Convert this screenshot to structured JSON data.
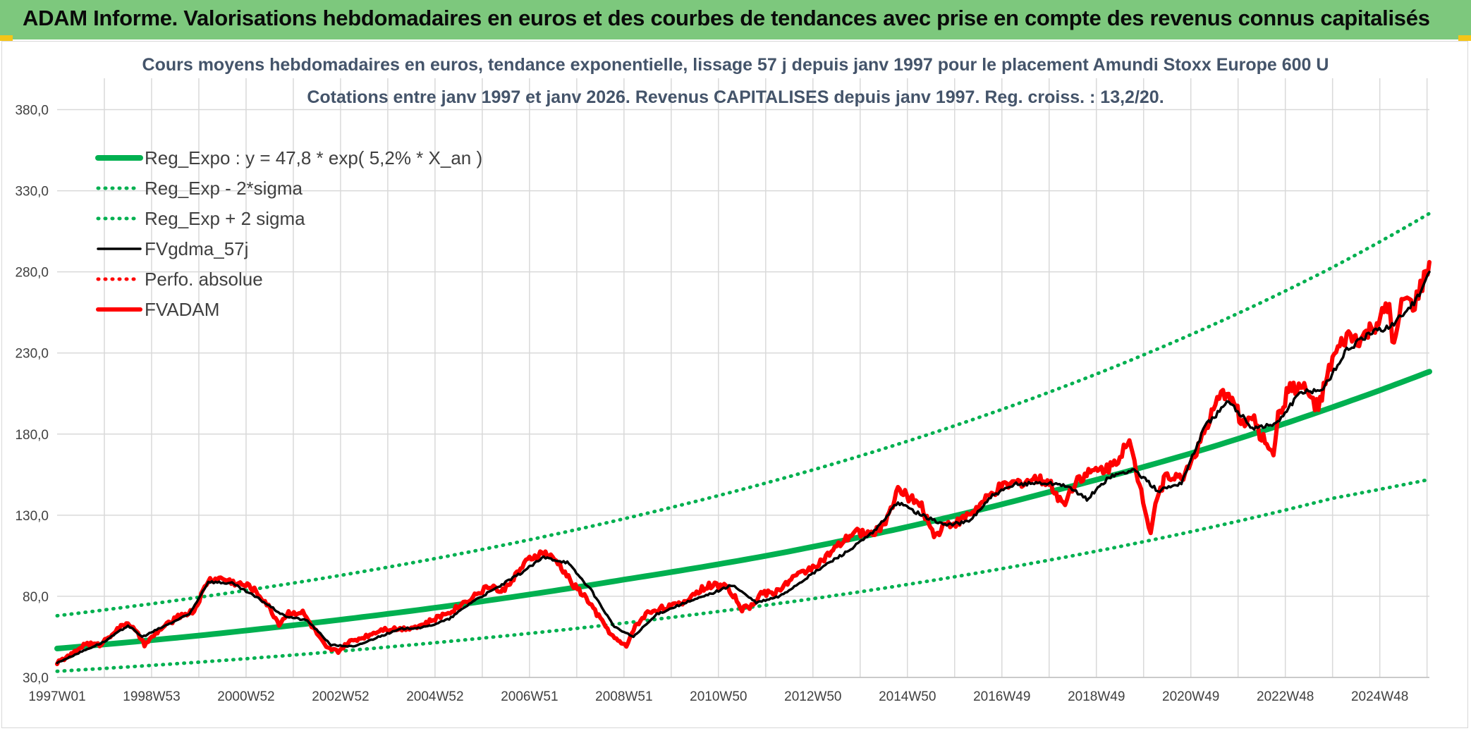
{
  "header": {
    "title": "ADAM Informe. Valorisations hebdomadaires en euros et des courbes de tendances avec prise en compte des revenus connus capitalisés"
  },
  "colors": {
    "header_bg": "#7dc87d",
    "reg_expo": "#00b050",
    "band": "#00b050",
    "fvgdma": "#000000",
    "perfo": "#ff0000",
    "fvadam": "#ff0000",
    "grid": "#d9d9d9",
    "subtitle": "#44546a"
  },
  "chart_data": {
    "type": "line",
    "title": "Cours moyens hebdomadaires en euros, tendance exponentielle, lissage 57 j depuis janv 1997 pour le placement Amundi Stoxx Europe 600 U",
    "subtitle": "Cotations entre janv 1997 et janv 2026. Revenus CAPITALISES depuis janv 1997. Reg. croiss. : 13,2/20.",
    "xlabel": "",
    "ylabel": "",
    "x_range": [
      1997.0,
      2026.05
    ],
    "ylim": [
      30,
      395
    ],
    "y_ticks": [
      "30,0",
      "80,0",
      "130,0",
      "180,0",
      "230,0",
      "280,0",
      "330,0",
      "380,0"
    ],
    "y_tick_values": [
      30,
      80,
      130,
      180,
      230,
      280,
      330,
      380
    ],
    "x_ticks": [
      "1997W01",
      "1998W53",
      "2000W52",
      "2002W52",
      "2004W52",
      "2006W51",
      "2008W51",
      "2010W50",
      "2012W50",
      "2014W50",
      "2016W49",
      "2018W49",
      "2020W49",
      "2022W48",
      "2024W48"
    ],
    "x_tick_values": [
      1997.0,
      1999.0,
      2001.0,
      2003.0,
      2005.0,
      2007.0,
      2009.0,
      2011.0,
      2013.0,
      2015.0,
      2017.0,
      2019.0,
      2021.0,
      2023.0,
      2025.0
    ],
    "grid": true,
    "legend_position": "top-left",
    "series": [
      {
        "name": "Reg_Expo : y = 47,8 * exp( 5,2% *  X_an )",
        "style": "solid-thick",
        "color": "#00b050",
        "x": [
          1997,
          2000,
          2003,
          2006,
          2009,
          2012,
          2015,
          2018,
          2021,
          2024,
          2026.05
        ],
        "values": [
          47.8,
          55.8,
          65.6,
          76.9,
          90.3,
          104.9,
          122.8,
          144.3,
          168.1,
          196.6,
          218.5
        ]
      },
      {
        "name": "Reg_Exp - 2*sigma",
        "style": "dotted",
        "color": "#00b050",
        "x": [
          1997,
          2000,
          2003,
          2006,
          2009,
          2012,
          2015,
          2018,
          2021,
          2024,
          2026.05
        ],
        "values": [
          33.8,
          39.4,
          46.2,
          54.2,
          63.5,
          74.5,
          87.3,
          102.3,
          119.8,
          140.4,
          152.0
        ]
      },
      {
        "name": "Reg_Exp + 2 sigma",
        "style": "dotted",
        "color": "#00b050",
        "x": [
          1997,
          2000,
          2003,
          2006,
          2009,
          2012,
          2015,
          2018,
          2021,
          2024,
          2026.05
        ],
        "values": [
          68.0,
          79.4,
          92.9,
          108.9,
          127.8,
          149.8,
          175.6,
          205.8,
          241.3,
          282.8,
          316.0
        ]
      },
      {
        "name": "FVgdma_57j",
        "style": "solid",
        "color": "#000000",
        "x": [
          1997.0,
          1997.6,
          1998.0,
          1998.5,
          1998.8,
          1999.3,
          1999.8,
          2000.2,
          2000.7,
          2001.3,
          2001.8,
          2002.3,
          2002.8,
          2003.3,
          2003.8,
          2004.3,
          2004.8,
          2005.3,
          2005.8,
          2006.3,
          2006.8,
          2007.3,
          2007.8,
          2008.3,
          2008.8,
          2009.2,
          2009.7,
          2010.2,
          2010.7,
          2011.3,
          2011.8,
          2012.3,
          2012.8,
          2013.3,
          2013.8,
          2014.3,
          2014.8,
          2015.3,
          2015.8,
          2016.3,
          2016.8,
          2017.3,
          2017.8,
          2018.3,
          2018.8,
          2019.3,
          2019.8,
          2020.3,
          2020.8,
          2021.3,
          2021.8,
          2022.3,
          2022.8,
          2023.3,
          2023.8,
          2024.3,
          2024.8,
          2025.3,
          2025.8,
          2026.05
        ],
        "values": [
          39,
          47,
          52,
          62,
          55,
          62,
          69,
          89,
          88,
          78,
          68,
          65,
          50,
          49,
          55,
          60,
          61,
          66,
          77,
          85,
          94,
          104,
          101,
          84,
          61,
          55,
          69,
          75,
          80,
          87,
          76,
          80,
          90,
          100,
          109,
          120,
          138,
          130,
          124,
          126,
          142,
          149,
          150,
          149,
          140,
          154,
          158,
          145,
          150,
          185,
          200,
          184,
          186,
          205,
          208,
          232,
          242,
          248,
          264,
          280
        ]
      },
      {
        "name": "Perfo. absolue",
        "style": "dotted",
        "color": "#ff0000",
        "x": [],
        "values": []
      },
      {
        "name": "FVADAM",
        "style": "solid-thick",
        "color": "#ff0000",
        "x": [
          1997.0,
          1997.3,
          1997.6,
          1997.9,
          1998.2,
          1998.5,
          1998.75,
          1998.85,
          1999.2,
          1999.6,
          1999.9,
          2000.2,
          2000.5,
          2000.8,
          2001.1,
          2001.4,
          2001.7,
          2001.9,
          2002.2,
          2002.5,
          2002.7,
          2002.95,
          2003.2,
          2003.5,
          2003.9,
          2004.3,
          2004.7,
          2005.0,
          2005.4,
          2005.8,
          2006.2,
          2006.4,
          2006.7,
          2007.0,
          2007.3,
          2007.6,
          2007.9,
          2008.2,
          2008.5,
          2008.8,
          2009.05,
          2009.2,
          2009.5,
          2009.8,
          2010.2,
          2010.5,
          2010.8,
          2011.2,
          2011.5,
          2011.7,
          2011.9,
          2012.2,
          2012.5,
          2012.8,
          2013.2,
          2013.5,
          2013.9,
          2014.2,
          2014.5,
          2014.8,
          2015.1,
          2015.3,
          2015.6,
          2015.75,
          2016.1,
          2016.5,
          2016.9,
          2017.3,
          2017.7,
          2018.0,
          2018.3,
          2018.6,
          2018.95,
          2019.3,
          2019.7,
          2019.95,
          2020.15,
          2020.25,
          2020.5,
          2020.8,
          2021.2,
          2021.6,
          2021.8,
          2022.1,
          2022.3,
          2022.5,
          2022.75,
          2022.85,
          2023.1,
          2023.4,
          2023.7,
          2024.0,
          2024.3,
          2024.6,
          2024.9,
          2025.2,
          2025.3,
          2025.5,
          2025.7,
          2025.9,
          2026.05
        ],
        "values": [
          39,
          44,
          51,
          50,
          58,
          64,
          55,
          50,
          60,
          68,
          71,
          90,
          91,
          88,
          86,
          77,
          63,
          70,
          70,
          57,
          48,
          46,
          52,
          55,
          60,
          60,
          62,
          66,
          72,
          80,
          87,
          82,
          93,
          103,
          107,
          101,
          88,
          79,
          66,
          54,
          49,
          60,
          70,
          73,
          75,
          82,
          87,
          86,
          72,
          74,
          82,
          82,
          90,
          95,
          102,
          110,
          120,
          118,
          124,
          145,
          140,
          135,
          116,
          124,
          126,
          135,
          146,
          150,
          152,
          150,
          137,
          153,
          157,
          160,
          174,
          145,
          120,
          138,
          156,
          152,
          175,
          202,
          207,
          186,
          190,
          178,
          170,
          190,
          210,
          208,
          196,
          226,
          240,
          238,
          247,
          258,
          232,
          264,
          258,
          272,
          286
        ]
      }
    ]
  }
}
